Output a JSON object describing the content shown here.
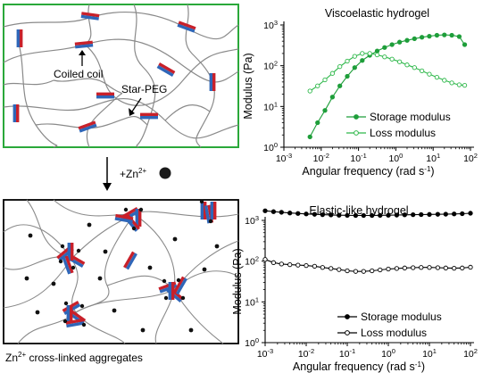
{
  "colors": {
    "panel_border_top": "#2aa83a",
    "panel_border_bottom": "#000000",
    "chain": "#8a8a8a",
    "block_red": "#c8202a",
    "block_blue": "#2f66b8",
    "storage_top": "#1e9e3a",
    "loss_top": "#2eb84a",
    "storage_bottom": "#000000",
    "loss_bottom": "#000000"
  },
  "schematic": {
    "coil_label": "Coiled coil",
    "starpeg_label": "Star-PEG",
    "zinc_label_prefix": "+Zn",
    "zinc_sup": "2+",
    "bottom_caption_prefix": "Zn",
    "bottom_caption_sup": "2+",
    "bottom_caption_rest": " cross-linked aggregates"
  },
  "chart_data": [
    {
      "type": "line",
      "title": "Viscoelastic hydrogel",
      "xlabel": "Angular frequency (rad s-1)",
      "ylabel": "Modulus (Pa)",
      "xscale": "log",
      "yscale": "log",
      "xlim": [
        0.001,
        100
      ],
      "ylim": [
        1,
        1000
      ],
      "xticks": [
        "10-3",
        "10-2",
        "10-1",
        "100",
        "101",
        "102"
      ],
      "yticks": [
        "100",
        "101",
        "102",
        "103"
      ],
      "legend": "bottom-right",
      "series": [
        {
          "name": "Storage modulus",
          "marker": "filled-circle",
          "x": [
            0.005,
            0.008,
            0.0126,
            0.02,
            0.0316,
            0.05,
            0.079,
            0.126,
            0.2,
            0.316,
            0.5,
            0.79,
            1.26,
            2,
            3.16,
            5,
            7.9,
            12.6,
            20,
            31.6,
            50,
            70
          ],
          "y": [
            1.8,
            4,
            8,
            17,
            32,
            55,
            90,
            135,
            180,
            230,
            280,
            330,
            380,
            420,
            460,
            500,
            530,
            560,
            570,
            560,
            520,
            330
          ]
        },
        {
          "name": "Loss modulus",
          "marker": "open-circle",
          "x": [
            0.005,
            0.008,
            0.0126,
            0.02,
            0.0316,
            0.05,
            0.079,
            0.126,
            0.2,
            0.316,
            0.5,
            0.79,
            1.26,
            2,
            3.16,
            5,
            7.9,
            12.6,
            20,
            31.6,
            50,
            70
          ],
          "y": [
            24,
            32,
            45,
            65,
            95,
            130,
            170,
            200,
            200,
            185,
            165,
            145,
            125,
            105,
            90,
            75,
            62,
            52,
            44,
            38,
            34,
            33
          ]
        }
      ]
    },
    {
      "type": "line",
      "title": "Elastic-like hydrogel",
      "xlabel": "Angular frequency (rad s-1)",
      "ylabel": "Modulus (Pa)",
      "xscale": "log",
      "yscale": "log",
      "xlim": [
        0.001,
        100
      ],
      "ylim": [
        1,
        1000
      ],
      "xticks": [
        "10-3",
        "10-2",
        "10-1",
        "100",
        "101",
        "102"
      ],
      "yticks": [
        "100",
        "101",
        "102",
        "103"
      ],
      "legend": "bottom-right",
      "series": [
        {
          "name": "Storage modulus",
          "marker": "filled-circle",
          "x": [
            0.001,
            0.0016,
            0.0025,
            0.004,
            0.0063,
            0.01,
            0.016,
            0.025,
            0.04,
            0.063,
            0.1,
            0.16,
            0.25,
            0.4,
            0.63,
            1,
            1.6,
            2.5,
            4,
            6.3,
            10,
            16,
            25,
            40,
            63,
            100
          ],
          "y": [
            1720,
            1640,
            1580,
            1520,
            1480,
            1440,
            1410,
            1380,
            1360,
            1340,
            1330,
            1320,
            1320,
            1320,
            1330,
            1340,
            1350,
            1370,
            1380,
            1390,
            1400,
            1410,
            1420,
            1440,
            1460,
            1500
          ]
        },
        {
          "name": "Loss modulus",
          "marker": "open-circle",
          "x": [
            0.001,
            0.0016,
            0.0025,
            0.004,
            0.0063,
            0.01,
            0.016,
            0.025,
            0.04,
            0.063,
            0.1,
            0.16,
            0.25,
            0.4,
            0.63,
            1,
            1.6,
            2.5,
            4,
            6.3,
            10,
            16,
            25,
            40,
            63,
            100
          ],
          "y": [
            110,
            92,
            85,
            82,
            80,
            78,
            75,
            70,
            66,
            62,
            58,
            56,
            56,
            58,
            61,
            64,
            66,
            68,
            69,
            70,
            70,
            69,
            68,
            67,
            68,
            71
          ]
        }
      ]
    }
  ]
}
